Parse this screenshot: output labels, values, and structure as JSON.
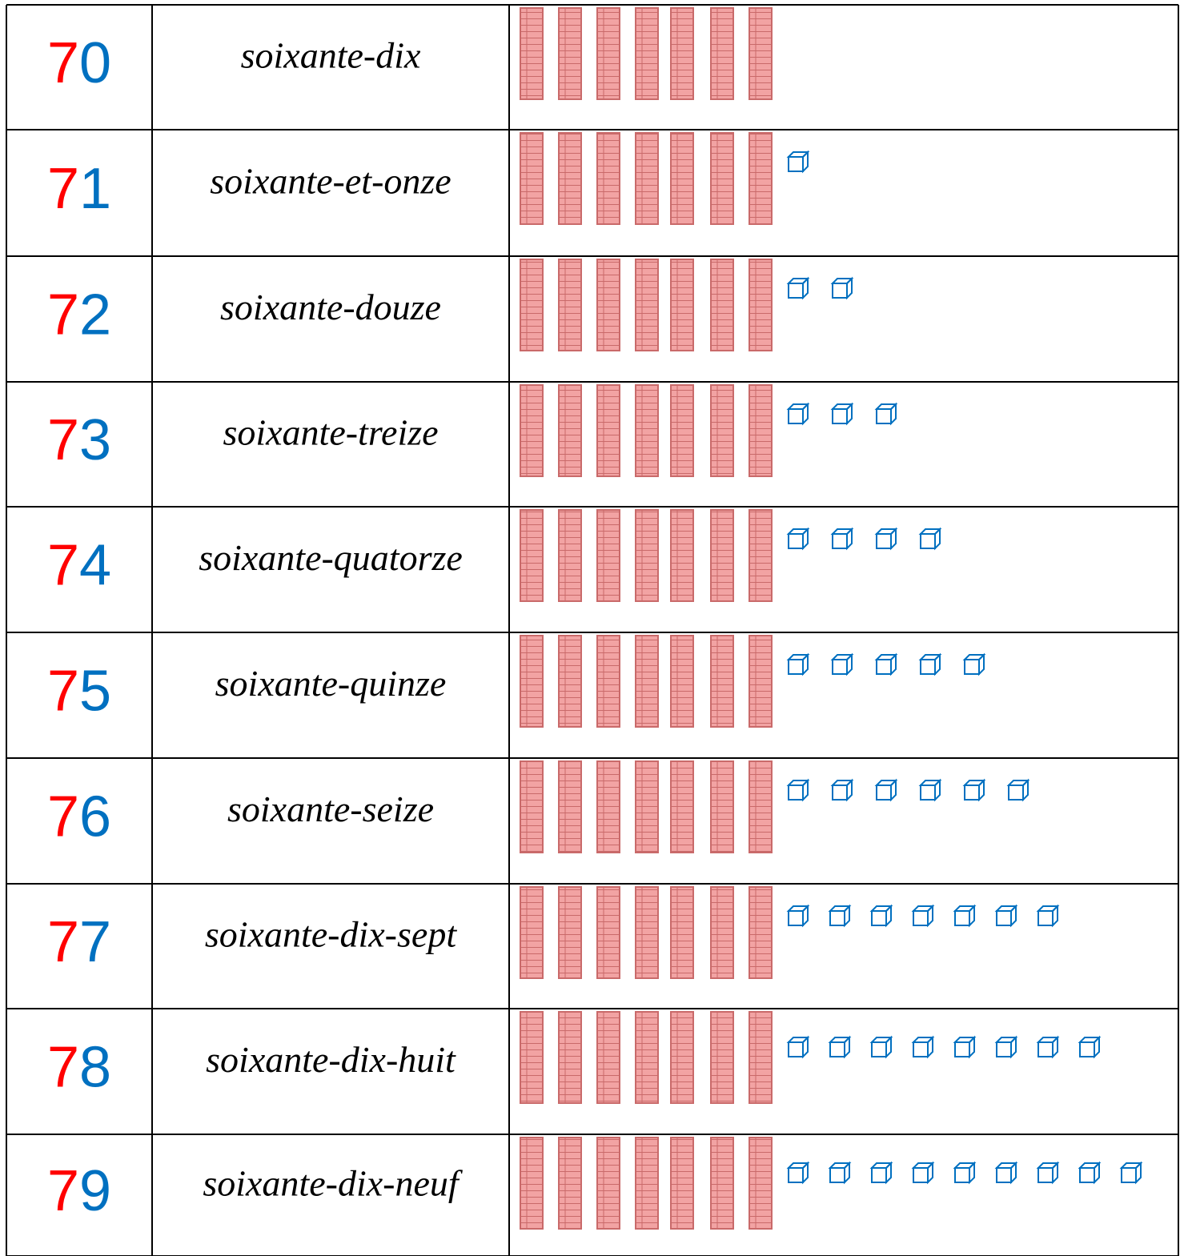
{
  "table": {
    "rows": [
      {
        "tens": "7",
        "units": "0",
        "words": "soixante-dix",
        "rods": 7,
        "cubes": 0
      },
      {
        "tens": "7",
        "units": "1",
        "words": "soixante-et-onze",
        "rods": 7,
        "cubes": 1
      },
      {
        "tens": "7",
        "units": "2",
        "words": "soixante-douze",
        "rods": 7,
        "cubes": 2
      },
      {
        "tens": "7",
        "units": "3",
        "words": "soixante-treize",
        "rods": 7,
        "cubes": 3
      },
      {
        "tens": "7",
        "units": "4",
        "words": "soixante-quatorze",
        "rods": 7,
        "cubes": 4
      },
      {
        "tens": "7",
        "units": "5",
        "words": "soixante-quinze",
        "rods": 7,
        "cubes": 5
      },
      {
        "tens": "7",
        "units": "6",
        "words": "soixante-seize",
        "rods": 7,
        "cubes": 6
      },
      {
        "tens": "7",
        "units": "7",
        "words": "soixante-dix-sept",
        "rods": 7,
        "cubes": 7
      },
      {
        "tens": "7",
        "units": "8",
        "words": "soixante-dix-huit",
        "rods": 7,
        "cubes": 8
      },
      {
        "tens": "7",
        "units": "9",
        "words": "soixante-dix-neuf",
        "rods": 7,
        "cubes": 9
      }
    ]
  }
}
